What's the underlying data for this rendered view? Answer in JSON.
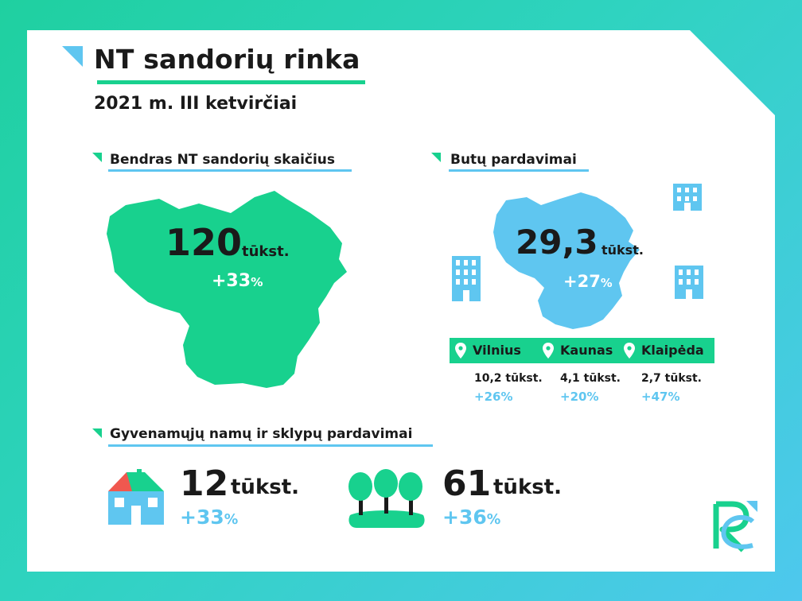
{
  "header": {
    "title": "NT sandorių rinka",
    "subtitle": "2021 m. III ketvirčiai"
  },
  "total": {
    "heading": "Bendras NT sandorių skaičius",
    "value": "120",
    "unit": "tūkst.",
    "change": "+33",
    "change_unit": "%"
  },
  "apartments": {
    "heading": "Butų pardavimai",
    "value": "29,3",
    "unit": "tūkst.",
    "change": "+27",
    "change_unit": "%",
    "cities": [
      {
        "name": "Vilnius",
        "value": "10,2 tūkst.",
        "change": "+26%"
      },
      {
        "name": "Kaunas",
        "value": "4,1 tūkst.",
        "change": "+20%"
      },
      {
        "name": "Klaipėda",
        "value": "2,7 tūkst.",
        "change": "+47%"
      }
    ]
  },
  "residential": {
    "heading": "Gyvenamųjų namų ir sklypų pardavimai",
    "houses": {
      "value": "12",
      "unit": "tūkst.",
      "change": "+33",
      "change_unit": "%"
    },
    "plots": {
      "value": "61",
      "unit": "tūkst.",
      "change": "+36",
      "change_unit": "%"
    }
  },
  "colors": {
    "green": "#18d18e",
    "blue": "#5fc6f0",
    "dark": "#1a1a1a",
    "roof": "#f0584f"
  },
  "icons": [
    "building-icon",
    "house-icon",
    "trees-icon",
    "location-pin-icon",
    "brand-logo"
  ]
}
